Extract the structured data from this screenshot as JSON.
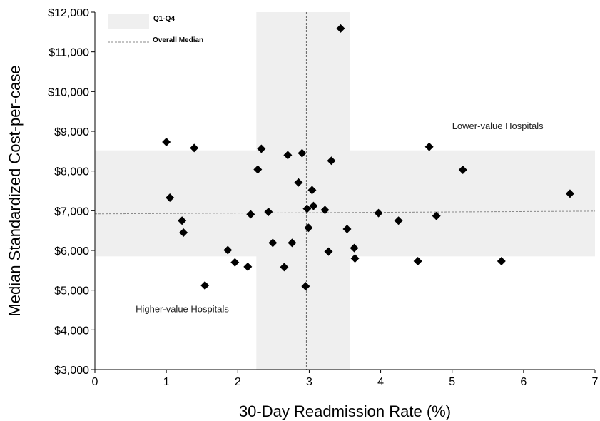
{
  "chart_data": {
    "type": "scatter",
    "xlabel": "30-Day Readmission Rate (%)",
    "ylabel": "Median Standardized Cost-per-case",
    "xlim": [
      0,
      7
    ],
    "ylim": [
      3000,
      12000
    ],
    "x_ticks": [
      0,
      1,
      2,
      3,
      4,
      5,
      6,
      7
    ],
    "x_tick_labels": [
      "0",
      "1",
      "2",
      "3",
      "4",
      "5",
      "6",
      "7"
    ],
    "y_ticks": [
      3000,
      4000,
      5000,
      6000,
      7000,
      8000,
      9000,
      10000,
      11000,
      12000
    ],
    "y_tick_labels": [
      "$3,000",
      "$4,000",
      "$5,000",
      "$6,000",
      "$7,000",
      "$8,000",
      "$9,000",
      "$10,000",
      "$11,000",
      "$12,000"
    ],
    "grid": false,
    "marker": "diamond",
    "marker_color": "#000000",
    "points": [
      {
        "x": 1.0,
        "y": 8730
      },
      {
        "x": 1.05,
        "y": 7330
      },
      {
        "x": 1.22,
        "y": 6750
      },
      {
        "x": 1.24,
        "y": 6450
      },
      {
        "x": 1.39,
        "y": 8580
      },
      {
        "x": 1.54,
        "y": 5120
      },
      {
        "x": 1.86,
        "y": 6010
      },
      {
        "x": 1.96,
        "y": 5700
      },
      {
        "x": 2.14,
        "y": 5590
      },
      {
        "x": 2.18,
        "y": 6910
      },
      {
        "x": 2.28,
        "y": 8040
      },
      {
        "x": 2.33,
        "y": 8560
      },
      {
        "x": 2.43,
        "y": 6970
      },
      {
        "x": 2.49,
        "y": 6190
      },
      {
        "x": 2.65,
        "y": 5580
      },
      {
        "x": 2.7,
        "y": 8400
      },
      {
        "x": 2.76,
        "y": 6190
      },
      {
        "x": 2.85,
        "y": 7710
      },
      {
        "x": 2.9,
        "y": 8450
      },
      {
        "x": 2.95,
        "y": 5100
      },
      {
        "x": 2.97,
        "y": 7050
      },
      {
        "x": 2.99,
        "y": 6570
      },
      {
        "x": 3.04,
        "y": 7520
      },
      {
        "x": 3.06,
        "y": 7120
      },
      {
        "x": 3.22,
        "y": 7020
      },
      {
        "x": 3.27,
        "y": 5970
      },
      {
        "x": 3.31,
        "y": 8260
      },
      {
        "x": 3.44,
        "y": 11590
      },
      {
        "x": 3.53,
        "y": 6540
      },
      {
        "x": 3.63,
        "y": 6060
      },
      {
        "x": 3.64,
        "y": 5800
      },
      {
        "x": 3.97,
        "y": 6940
      },
      {
        "x": 4.25,
        "y": 6750
      },
      {
        "x": 4.52,
        "y": 5730
      },
      {
        "x": 4.68,
        "y": 8610
      },
      {
        "x": 4.78,
        "y": 6870
      },
      {
        "x": 5.15,
        "y": 8030
      },
      {
        "x": 5.69,
        "y": 5730
      },
      {
        "x": 6.65,
        "y": 7430
      }
    ],
    "q1_q4_band_x": [
      2.26,
      3.57
    ],
    "q1_q4_band_y": [
      5850,
      8520
    ],
    "band_color": "#efefef",
    "median_x": 2.96,
    "median_line": {
      "x": [
        0,
        7
      ],
      "y": [
        6920,
        6990
      ]
    },
    "median_line_color": "#888888",
    "legend": {
      "placement": "top-left",
      "entries": [
        {
          "label": "Q1-Q4",
          "style": "shaded-box"
        },
        {
          "label": "Overall Median",
          "style": "dashed-line"
        }
      ]
    },
    "annotations": [
      {
        "text": "Lower-value  Hospitals",
        "x": 5.0,
        "y": 9050
      },
      {
        "text": "Higher-value  Hospitals",
        "x": 0.57,
        "y": 4450
      }
    ]
  }
}
